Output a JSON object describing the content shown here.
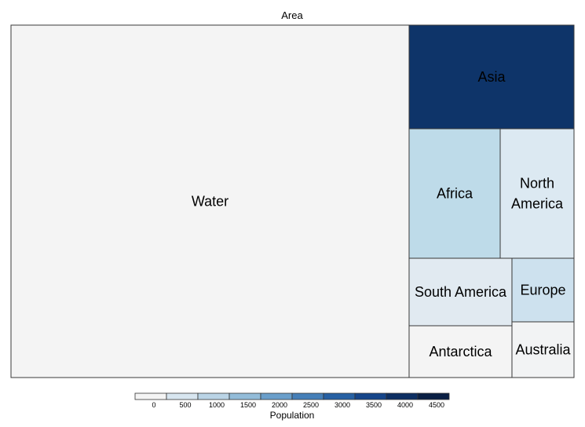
{
  "chart_data": {
    "type": "treemap",
    "title": "Area",
    "size_variable": "Area",
    "color_variable": "Population",
    "tiles": [
      {
        "name": "Water",
        "area": 361,
        "population": 0,
        "color": "#f4f4f4",
        "label_color": "#000000",
        "lines": [
          "Water"
        ]
      },
      {
        "name": "Asia",
        "area": 44.6,
        "population": 4600,
        "color": "#0e3469",
        "label_color": "#ffffff",
        "lines": [
          "Asia"
        ]
      },
      {
        "name": "Africa",
        "area": 30.4,
        "population": 1300,
        "color": "#bedbe9",
        "label_color": "#000000",
        "lines": [
          "Africa"
        ]
      },
      {
        "name": "North America",
        "area": 24.7,
        "population": 590,
        "color": "#dce9f2",
        "label_color": "#000000",
        "lines": [
          "North",
          "America"
        ]
      },
      {
        "name": "South America",
        "area": 17.8,
        "population": 430,
        "color": "#e1eaf1",
        "label_color": "#000000",
        "lines": [
          "South America"
        ]
      },
      {
        "name": "Antarctica",
        "area": 14.2,
        "population": 0,
        "color": "#f4f4f4",
        "label_color": "#000000",
        "lines": [
          "Antarctica"
        ]
      },
      {
        "name": "Europe",
        "area": 10.2,
        "population": 740,
        "color": "#cde1ee",
        "label_color": "#000000",
        "lines": [
          "Europe"
        ]
      },
      {
        "name": "Australia",
        "area": 8.6,
        "population": 40,
        "color": "#f2f3f4",
        "label_color": "#000000",
        "lines": [
          "Australia"
        ]
      }
    ],
    "legend": {
      "title": "Population",
      "placement": "bottom",
      "ticks": [
        "0",
        "500",
        "1000",
        "1500",
        "2000",
        "2500",
        "3000",
        "3500",
        "4000",
        "4500"
      ],
      "bins": [
        0,
        500,
        1000,
        1500,
        2000,
        2500,
        3000,
        3500,
        4000,
        4500,
        5000
      ],
      "colors": [
        "#f4f4f4",
        "#d8e6f0",
        "#bad4e6",
        "#93bcd9",
        "#6a9fcb",
        "#457fb8",
        "#2660a3",
        "#15458a",
        "#0d2f63",
        "#0a1f44"
      ]
    }
  }
}
